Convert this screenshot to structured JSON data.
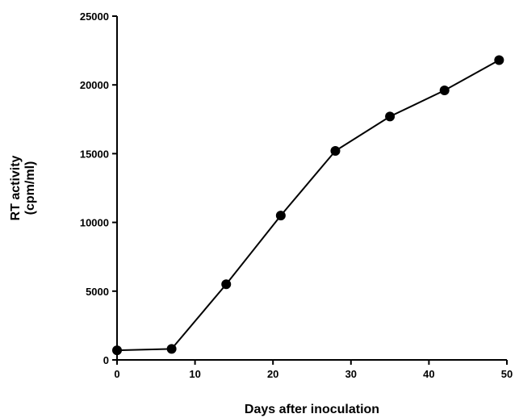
{
  "chart_data": {
    "type": "line",
    "title": "",
    "xlabel": "Days after inoculation",
    "ylabel_lines": [
      "RT activity",
      "(cpm/ml)"
    ],
    "xlim": [
      0,
      50
    ],
    "ylim": [
      0,
      25000
    ],
    "xticks": [
      0,
      10,
      20,
      30,
      40,
      50
    ],
    "yticks": [
      0,
      5000,
      10000,
      15000,
      20000,
      25000
    ],
    "xtick_labels": [
      "0",
      "10",
      "20",
      "30",
      "40",
      "50"
    ],
    "ytick_labels": [
      "0",
      "5000",
      "10000",
      "15000",
      "20000",
      "25000"
    ],
    "grid": false,
    "legend": "none",
    "series": [
      {
        "x": [
          0,
          7,
          14,
          21,
          28,
          35,
          42,
          49
        ],
        "y": [
          700,
          800,
          5500,
          10500,
          15200,
          17700,
          19600,
          21800
        ],
        "color": "#000000",
        "marker": "filled-circle"
      }
    ]
  }
}
